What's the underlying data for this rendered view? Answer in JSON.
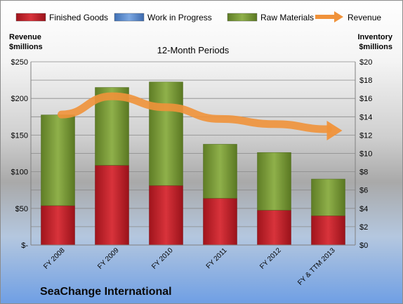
{
  "company_name": "SeaChange International",
  "chart_data": {
    "type": "bar",
    "title": "12-Month Periods",
    "categories": [
      "FY 2008",
      "FY 2009",
      "FY 2010",
      "FY 2011",
      "FY 2012",
      "FY & TTM 2013"
    ],
    "stacked": true,
    "series": [
      {
        "name": "Finished Goods",
        "axis": "right",
        "color": "#c0202a",
        "values": [
          4.3,
          8.7,
          6.5,
          5.1,
          3.8,
          3.2
        ]
      },
      {
        "name": "Work in Progress",
        "axis": "right",
        "color": "#5b8ed4",
        "values": [
          0,
          0,
          0,
          0,
          0,
          0
        ]
      },
      {
        "name": "Raw Materials",
        "axis": "right",
        "color": "#7a9a36",
        "values": [
          9.9,
          8.5,
          11.3,
          5.9,
          6.3,
          4.0
        ]
      },
      {
        "name": "Revenue",
        "axis": "left",
        "type": "line",
        "color": "#f0923a",
        "values": [
          178,
          203,
          188,
          172,
          165,
          158
        ]
      }
    ],
    "y_left": {
      "label": "Revenue\n$millions",
      "ylim": [
        0,
        250
      ],
      "ticks": [
        "$-",
        "$50",
        "$100",
        "$150",
        "$200",
        "$250"
      ]
    },
    "y_right": {
      "label": "Inventory\n$millions",
      "ylim": [
        0,
        20
      ],
      "ticks": [
        "$0",
        "$2",
        "$4",
        "$6",
        "$8",
        "$10",
        "$12",
        "$14",
        "$16",
        "$18",
        "$20"
      ]
    },
    "grid": true,
    "legend_position": "top"
  }
}
